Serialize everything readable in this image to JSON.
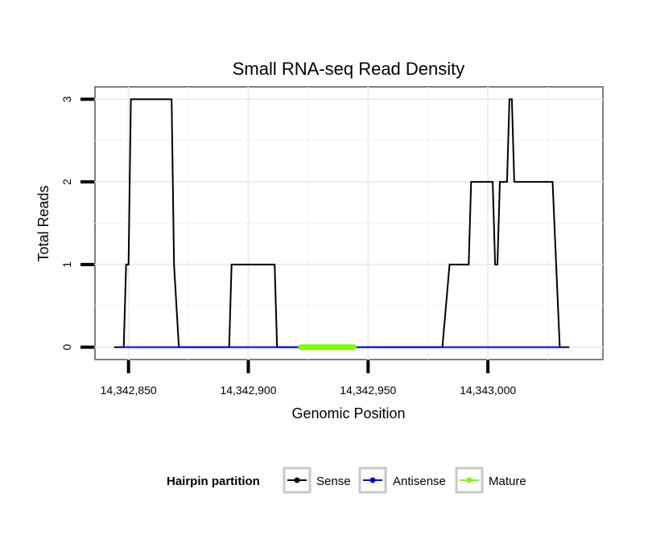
{
  "chart_data": {
    "type": "line",
    "title": "Small RNA-seq Read Density",
    "xlabel": "Genomic Position",
    "ylabel": "Total Reads",
    "xlim": [
      14342836,
      14343048
    ],
    "ylim": [
      -0.15,
      3.15
    ],
    "x_ticks": [
      14342850,
      14342900,
      14342950,
      14343000
    ],
    "x_tick_labels": [
      "14,342,850",
      "14,342,900",
      "14,342,950",
      "14,343,000"
    ],
    "y_ticks": [
      0,
      1,
      2,
      3
    ],
    "y_tick_labels": [
      "0",
      "1",
      "2",
      "3"
    ],
    "grid": true,
    "legend": {
      "title": "Hairpin partition",
      "position": "bottom",
      "entries": [
        {
          "label": "Sense",
          "color": "#000000"
        },
        {
          "label": "Antisense",
          "color": "#0000ff"
        },
        {
          "label": "Mature",
          "color": "#7cfc00"
        }
      ]
    },
    "series": [
      {
        "name": "Sense",
        "color": "#000000",
        "x": [
          14342844,
          14342848,
          14342849,
          14342850,
          14342851,
          14342852,
          14342868,
          14342869,
          14342871,
          14342892,
          14342893,
          14342911,
          14342912,
          14342981,
          14342984,
          14342985,
          14342992,
          14342993,
          14343002,
          14343003,
          14343004,
          14343005,
          14343008,
          14343009,
          14343010,
          14343011,
          14343013,
          14343014,
          14343027,
          14343030,
          14343034
        ],
        "values": [
          0,
          0,
          1,
          1,
          3,
          3,
          3,
          1,
          0,
          0,
          1,
          1,
          0,
          0,
          1,
          1,
          1,
          2,
          2,
          1,
          1,
          2,
          2,
          3,
          3,
          2,
          2,
          2,
          2,
          0,
          0
        ]
      },
      {
        "name": "Antisense",
        "color": "#0000ff",
        "x": [
          14342847,
          14343031
        ],
        "values": [
          0,
          0
        ]
      },
      {
        "name": "Mature",
        "color": "#7cfc00",
        "x": [
          14342922,
          14342944
        ],
        "values": [
          0,
          0
        ]
      }
    ]
  }
}
